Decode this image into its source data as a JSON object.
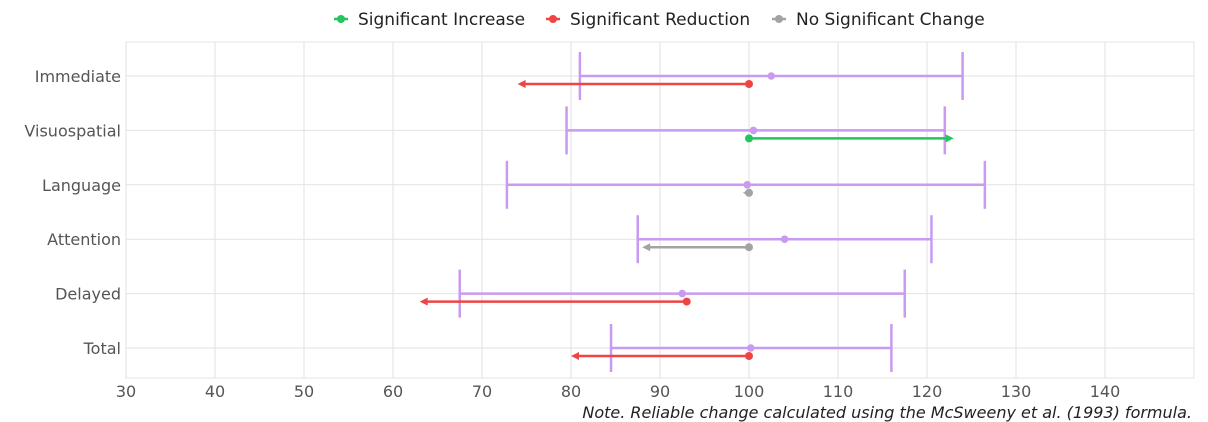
{
  "chart_data": {
    "type": "interval_arrow",
    "title": "",
    "xlabel": "",
    "ylabel": "",
    "xlim": [
      30,
      150
    ],
    "xticks": [
      30,
      40,
      50,
      60,
      70,
      80,
      90,
      100,
      110,
      120,
      130,
      140
    ],
    "grid": true,
    "legend_position": "top",
    "legend": [
      {
        "label": "Significant Increase",
        "color": "#22c55e"
      },
      {
        "label": "Significant Reduction",
        "color": "#ef4444"
      },
      {
        "label": "No Significant Change",
        "color": "#a3a3a3"
      }
    ],
    "interval_color": "#c99af0",
    "categories": [
      "Immediate",
      "Visuospatial",
      "Language",
      "Attention",
      "Delayed",
      "Total"
    ],
    "intervals": [
      {
        "category": "Immediate",
        "low": 81,
        "mid": 102.5,
        "high": 124
      },
      {
        "category": "Visuospatial",
        "low": 79.5,
        "mid": 100.5,
        "high": 122
      },
      {
        "category": "Language",
        "low": 72.8,
        "mid": 99.8,
        "high": 126.5
      },
      {
        "category": "Attention",
        "low": 87.5,
        "mid": 104,
        "high": 120.5
      },
      {
        "category": "Delayed",
        "low": 67.5,
        "mid": 92.5,
        "high": 117.5
      },
      {
        "category": "Total",
        "low": 84.5,
        "mid": 100.2,
        "high": 116
      }
    ],
    "changes": [
      {
        "category": "Immediate",
        "from": 100,
        "to": 74,
        "status": "Significant Reduction"
      },
      {
        "category": "Visuospatial",
        "from": 100,
        "to": 123,
        "status": "Significant Increase"
      },
      {
        "category": "Language",
        "from": 100,
        "to": 99.3,
        "status": "No Significant Change"
      },
      {
        "category": "Attention",
        "from": 100,
        "to": 88,
        "status": "No Significant Change"
      },
      {
        "category": "Delayed",
        "from": 93,
        "to": 63,
        "status": "Significant Reduction"
      },
      {
        "category": "Total",
        "from": 100,
        "to": 80,
        "status": "Significant Reduction"
      }
    ],
    "note": "Note. Reliable change calculated using the McSweeny et al. (1993) formula."
  }
}
